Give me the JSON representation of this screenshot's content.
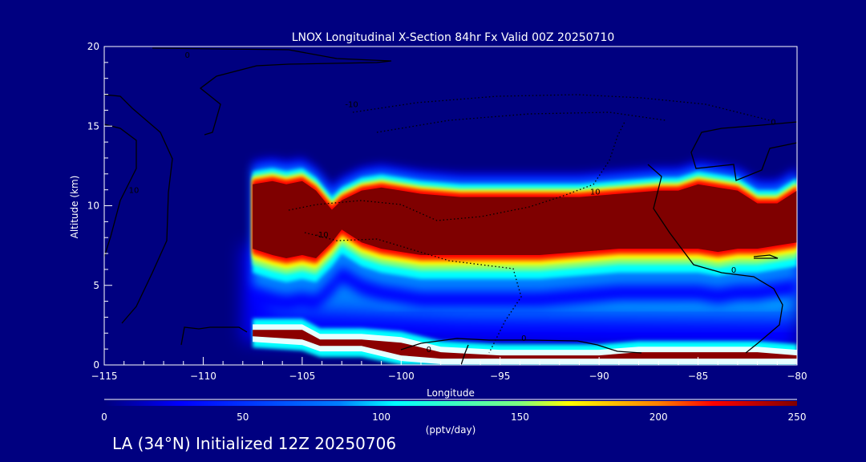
{
  "chart_data": {
    "type": "heatmap",
    "title": "LNOX Longitudinal X-Section 84hr  Fx Valid 00Z 20250710",
    "xlabel": "Longitude",
    "ylabel": "Altitude (km)",
    "xlim": [
      -115,
      -80
    ],
    "ylim": [
      0,
      20
    ],
    "x_ticks": [
      -115,
      -110,
      -105,
      -100,
      -95,
      -90,
      -85,
      -80
    ],
    "x_tick_labels": [
      "−115",
      "−110",
      "−105",
      "−100",
      "−95",
      "−90",
      "−85",
      "−80"
    ],
    "y_ticks": [
      0,
      5,
      10,
      15,
      20
    ],
    "y_tick_labels": [
      "0",
      "5",
      "10",
      "15",
      "20"
    ],
    "colorbar": {
      "min": 0,
      "max": 250,
      "ticks": [
        0,
        50,
        100,
        150,
        200,
        250
      ],
      "tick_labels": [
        "0",
        "50",
        "100",
        "150",
        "200",
        "250"
      ],
      "units": "(pptv/day)",
      "colormap": [
        "#00007f",
        "#0000ff",
        "#007fff",
        "#00ffff",
        "#7fff7f",
        "#ffff00",
        "#ff7f00",
        "#ff0000",
        "#7f0000"
      ]
    },
    "upper_band_profile": {
      "longitude": [
        -107.5,
        -106.5,
        -105.8,
        -105,
        -104.3,
        -103.5,
        -103,
        -102,
        -101,
        -100,
        -99,
        -97,
        -95,
        -93,
        -91,
        -89,
        -87,
        -86,
        -85,
        -84,
        -83,
        -82,
        -81,
        -80
      ],
      "bottom_km": [
        7.2,
        6.8,
        6.6,
        6.8,
        6.6,
        7.6,
        8.4,
        7.6,
        7.2,
        7.0,
        6.8,
        6.8,
        6.8,
        6.8,
        7.0,
        7.2,
        7.2,
        7.2,
        7.2,
        7.0,
        7.2,
        7.2,
        7.4,
        7.6
      ],
      "top_km": [
        11.6,
        11.8,
        11.6,
        11.8,
        11.2,
        10.0,
        10.6,
        11.2,
        11.4,
        11.2,
        11.0,
        10.8,
        10.8,
        10.8,
        10.8,
        11.0,
        11.2,
        11.2,
        11.6,
        11.4,
        11.2,
        10.4,
        10.4,
        11.2
      ]
    },
    "surface_band": {
      "longitude": [
        -107.5,
        -105,
        -104.1,
        -103.5,
        -102,
        -100,
        -98,
        -95,
        -93,
        -90,
        -88,
        -86,
        -84,
        -82,
        -81,
        -80
      ],
      "top_km": [
        2.2,
        2.2,
        1.6,
        1.6,
        1.6,
        1.4,
        0.8,
        0.6,
        0.6,
        0.6,
        0.8,
        0.8,
        0.8,
        0.8,
        0.7,
        0.6
      ],
      "bottom_km": [
        1.8,
        1.6,
        1.2,
        1.2,
        1.2,
        0.6,
        0.4,
        0.4,
        0.4,
        0.4,
        0.4,
        0.4,
        0.4,
        0.4,
        0.4,
        0.4
      ]
    },
    "contour_labels": [
      {
        "text": "0",
        "lon": -110.8,
        "alt": 19.3
      },
      {
        "text": "10",
        "lon": -113.5,
        "alt": 10.8
      },
      {
        "text": "-10",
        "lon": -102.5,
        "alt": 16.2
      },
      {
        "text": "10",
        "lon": -90.2,
        "alt": 10.7
      },
      {
        "text": "-10",
        "lon": -104.0,
        "alt": 8.0
      },
      {
        "text": "0",
        "lon": -81.2,
        "alt": 15.1
      },
      {
        "text": "0",
        "lon": -83.2,
        "alt": 5.8
      },
      {
        "text": "0",
        "lon": -93.8,
        "alt": 1.5
      },
      {
        "text": "0",
        "lon": -98.6,
        "alt": 0.8
      }
    ]
  },
  "footer": "LA (34°N) Initialized 12Z 20250706"
}
